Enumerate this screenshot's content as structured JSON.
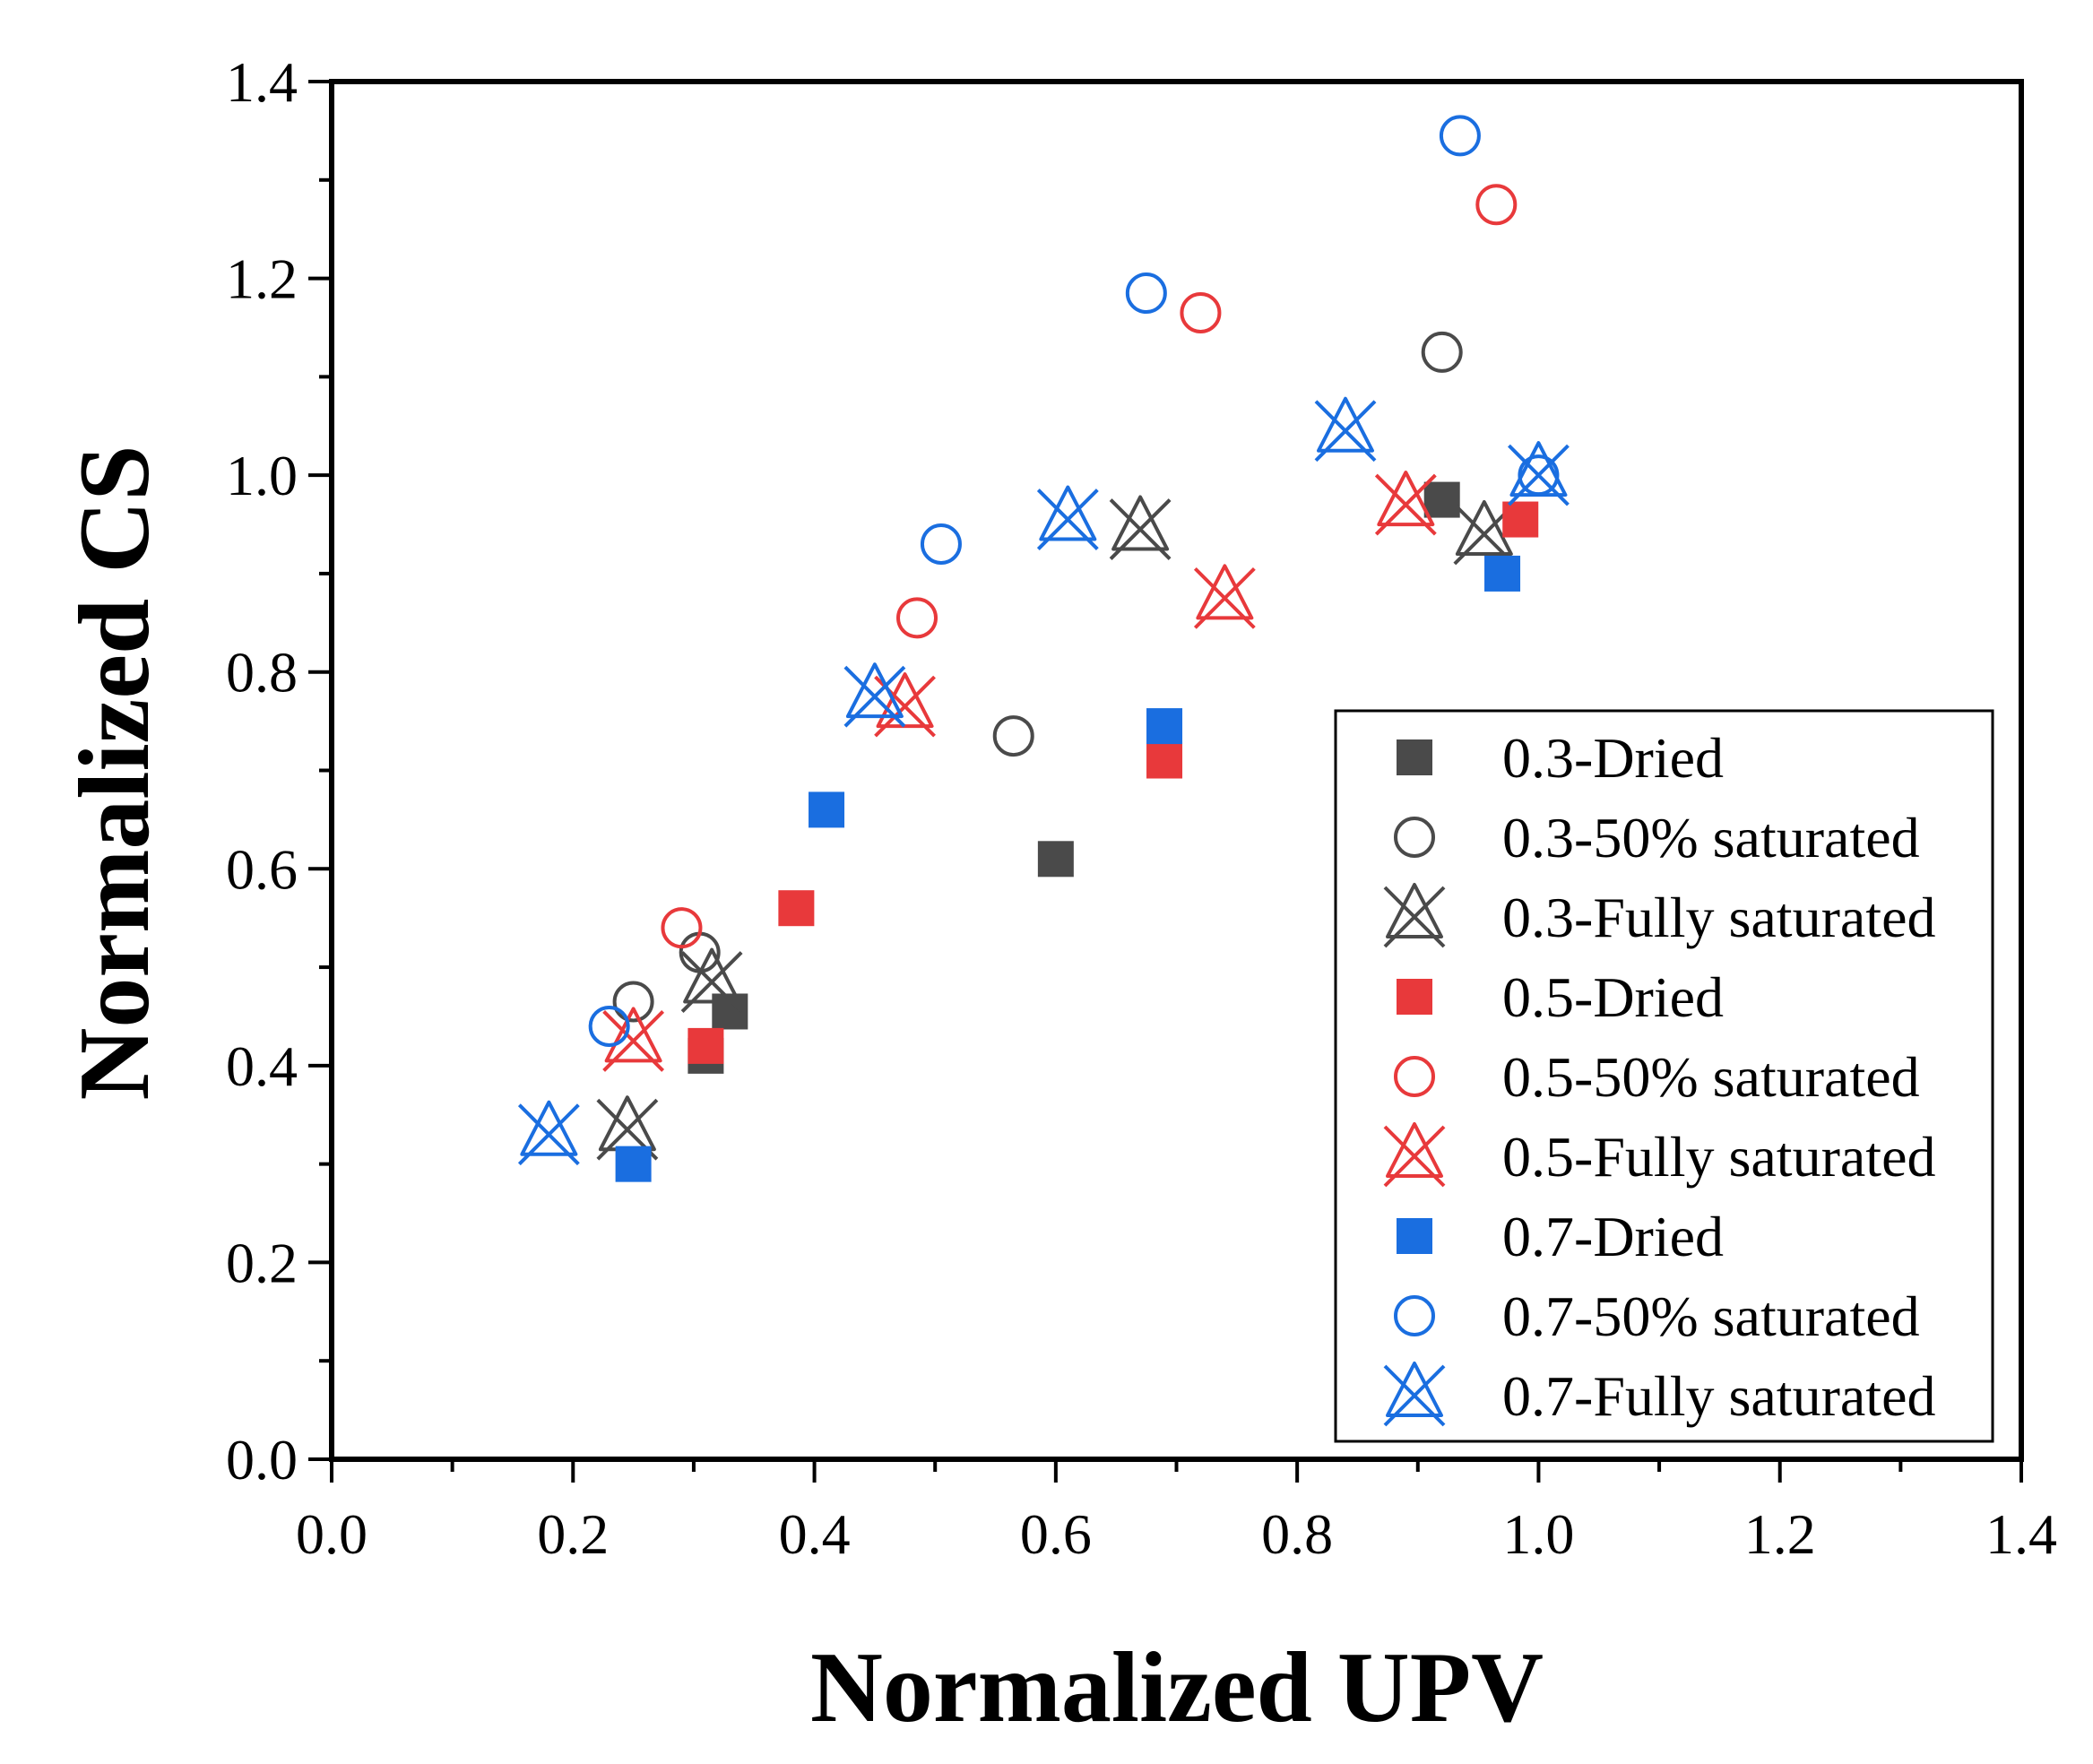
{
  "chart_data": {
    "type": "scatter",
    "xlabel": "Normalized UPV",
    "ylabel": "Normalized CS",
    "xlim": [
      0.0,
      1.4
    ],
    "ylim": [
      0.0,
      1.4
    ],
    "xticks": [
      "0.0",
      "0.2",
      "0.4",
      "0.6",
      "0.8",
      "1.0",
      "1.2",
      "1.4"
    ],
    "yticks": [
      "0.0",
      "0.2",
      "0.4",
      "0.6",
      "0.8",
      "1.0",
      "1.2",
      "1.4"
    ],
    "legend_position": "lower-right",
    "series": [
      {
        "name": "0.3-Dried",
        "marker": "square",
        "color": "#4a4a4a",
        "x": [
          0.31,
          0.33,
          0.6,
          0.92
        ],
        "y": [
          0.41,
          0.455,
          0.61,
          0.975
        ]
      },
      {
        "name": "0.3-50% saturated",
        "marker": "circle",
        "color": "#4a4a4a",
        "x": [
          0.25,
          0.305,
          0.565,
          0.92
        ],
        "y": [
          0.465,
          0.515,
          0.735,
          1.125
        ]
      },
      {
        "name": "0.3-Fully saturated",
        "marker": "star",
        "color": "#4a4a4a",
        "x": [
          0.245,
          0.315,
          0.67,
          0.955
        ],
        "y": [
          0.335,
          0.485,
          0.945,
          0.94
        ]
      },
      {
        "name": "0.5-Dried",
        "marker": "square",
        "color": "#e8393b",
        "x": [
          0.31,
          0.385,
          0.69,
          0.985
        ],
        "y": [
          0.42,
          0.56,
          0.71,
          0.955
        ]
      },
      {
        "name": "0.5-50% saturated",
        "marker": "circle",
        "color": "#e8393b",
        "x": [
          0.29,
          0.485,
          0.72,
          0.965
        ],
        "y": [
          0.54,
          0.855,
          1.165,
          1.275
        ]
      },
      {
        "name": "0.5-Fully saturated",
        "marker": "star",
        "color": "#e8393b",
        "x": [
          0.25,
          0.475,
          0.74,
          0.89
        ],
        "y": [
          0.425,
          0.765,
          0.875,
          0.97
        ]
      },
      {
        "name": "0.7-Dried",
        "marker": "square",
        "color": "#1a6ee0",
        "x": [
          0.25,
          0.41,
          0.69,
          0.97
        ],
        "y": [
          0.3,
          0.66,
          0.745,
          0.9
        ]
      },
      {
        "name": "0.7-50% saturated",
        "marker": "circle",
        "color": "#1a6ee0",
        "x": [
          0.23,
          0.505,
          0.675,
          0.935,
          1.0
        ],
        "y": [
          0.44,
          0.93,
          1.185,
          1.345,
          1.0
        ]
      },
      {
        "name": "0.7-Fully saturated",
        "marker": "star",
        "color": "#1a6ee0",
        "x": [
          0.18,
          0.45,
          0.61,
          0.84,
          1.0
        ],
        "y": [
          0.33,
          0.775,
          0.955,
          1.045,
          1.0
        ]
      }
    ]
  }
}
